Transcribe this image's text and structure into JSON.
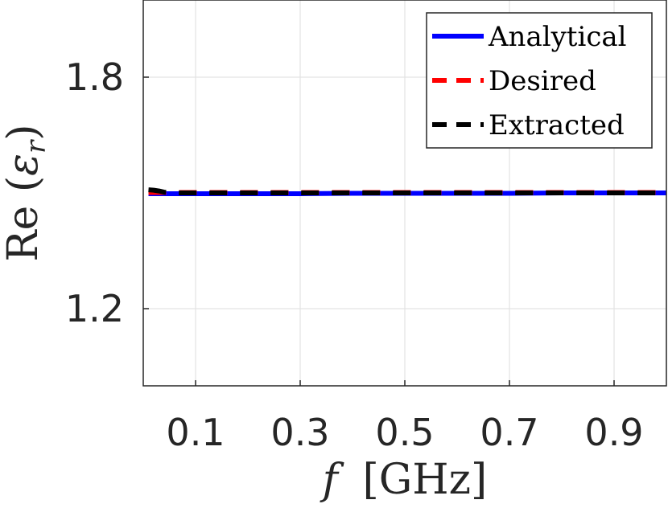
{
  "chart_data": {
    "type": "line",
    "xlabel": "f [GHz]",
    "xlabel_italic": "f",
    "xlabel_unit": "[GHz]",
    "ylabel": "Re (ε_r)",
    "ylabel_prefix": "Re (",
    "ylabel_symbol": "ε",
    "ylabel_sub": "r",
    "ylabel_suffix": ")",
    "xlim": [
      0.0,
      1.0
    ],
    "ylim": [
      1.0,
      2.0
    ],
    "x_ticks": [
      0.1,
      0.3,
      0.5,
      0.7,
      0.9
    ],
    "x_tick_labels": [
      "0.1",
      "0.3",
      "0.5",
      "0.7",
      "0.9"
    ],
    "y_ticks": [
      1.2,
      1.8
    ],
    "y_tick_labels": [
      "1.2",
      "1.8"
    ],
    "grid": true,
    "legend_position": "top-right",
    "series": [
      {
        "name": "Analytical",
        "color": "#0000ff",
        "style": "solid",
        "x": [
          0.01,
          0.1,
          0.2,
          0.3,
          0.4,
          0.5,
          0.6,
          0.7,
          0.8,
          0.9,
          1.0
        ],
        "y": [
          1.498,
          1.498,
          1.498,
          1.498,
          1.499,
          1.499,
          1.499,
          1.499,
          1.5,
          1.5,
          1.5
        ]
      },
      {
        "name": "Desired",
        "color": "#ff0000",
        "style": "dashed",
        "x": [
          0.01,
          0.1,
          0.2,
          0.3,
          0.4,
          0.5,
          0.6,
          0.7,
          0.8,
          0.9,
          1.0
        ],
        "y": [
          1.501,
          1.501,
          1.501,
          1.501,
          1.501,
          1.501,
          1.501,
          1.501,
          1.501,
          1.501,
          1.501
        ]
      },
      {
        "name": "Extracted",
        "color": "#000000",
        "style": "dashed",
        "x": [
          0.01,
          0.02,
          0.03,
          0.04,
          0.05,
          0.1,
          0.2,
          0.3,
          0.4,
          0.5,
          0.6,
          0.7,
          0.8,
          0.9,
          1.0
        ],
        "y": [
          1.508,
          1.507,
          1.505,
          1.502,
          1.5,
          1.5,
          1.5,
          1.5,
          1.5,
          1.5,
          1.5,
          1.5,
          1.5,
          1.5,
          1.5
        ]
      }
    ]
  }
}
